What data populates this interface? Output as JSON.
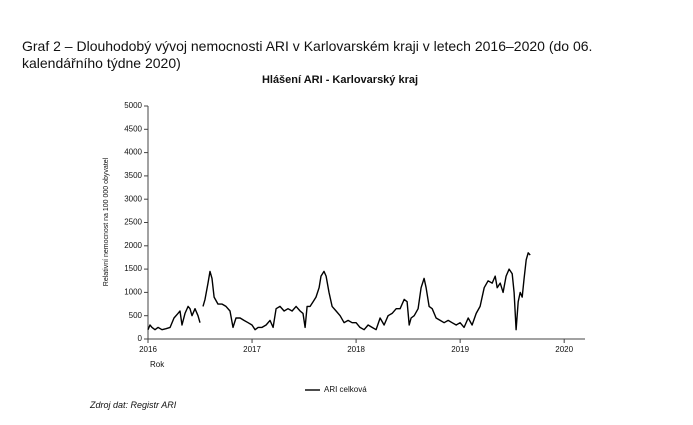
{
  "caption": "Graf 2 – Dlouhodobý vývoj nemocnosti ARI v Karlovarském kraji v letech 2016–2020 (do 06. kalendářního týdne 2020)",
  "source": "Zdroj dat: Registr ARI",
  "chart_data": {
    "type": "line",
    "title": "Hlášení ARI  -  Karlovarský kraj",
    "x_label": "Rok",
    "y_label": "Relativní nemocnost na 100 000 obyvatel",
    "x": [
      2016.0,
      2016.019,
      2016.038,
      2016.067,
      2016.096,
      2016.135,
      2016.173,
      2016.212,
      2016.25,
      2016.288,
      2016.308,
      2016.327,
      2016.356,
      2016.385,
      2016.404,
      2016.423,
      2016.452,
      2016.481,
      2016.5,
      2016.514,
      2016.529,
      2016.548,
      2016.577,
      2016.596,
      2016.615,
      2016.635,
      2016.673,
      2016.712,
      2016.75,
      2016.788,
      2016.817,
      2016.846,
      2016.885,
      2016.923,
      2016.962,
      2017.0,
      2017.029,
      2017.058,
      2017.096,
      2017.135,
      2017.173,
      2017.202,
      2017.231,
      2017.269,
      2017.308,
      2017.346,
      2017.385,
      2017.423,
      2017.462,
      2017.49,
      2017.51,
      2017.529,
      2017.558,
      2017.587,
      2017.615,
      2017.644,
      2017.663,
      2017.692,
      2017.712,
      2017.74,
      2017.769,
      2017.808,
      2017.846,
      2017.885,
      2017.923,
      2017.962,
      2018.0,
      2018.038,
      2018.077,
      2018.115,
      2018.154,
      2018.192,
      2018.231,
      2018.269,
      2018.308,
      2018.346,
      2018.385,
      2018.423,
      2018.462,
      2018.49,
      2018.51,
      2018.529,
      2018.558,
      2018.596,
      2018.625,
      2018.654,
      2018.673,
      2018.702,
      2018.731,
      2018.769,
      2018.808,
      2018.846,
      2018.885,
      2018.923,
      2018.962,
      2019.0,
      2019.038,
      2019.077,
      2019.115,
      2019.154,
      2019.192,
      2019.231,
      2019.269,
      2019.308,
      2019.337,
      2019.356,
      2019.385,
      2019.413,
      2019.442,
      2019.471,
      2019.5,
      2019.519,
      2019.538,
      2019.558,
      2019.577,
      2019.596,
      2019.615,
      2019.635,
      2019.654,
      2019.673
    ],
    "series": [
      {
        "name": "ARI celková",
        "color": "#000000",
        "values": [
          200,
          300,
          250,
          200,
          250,
          200,
          220,
          250,
          450,
          550,
          600,
          300,
          550,
          700,
          650,
          500,
          650,
          500,
          350,
          null,
          700,
          850,
          1200,
          1450,
          1300,
          900,
          750,
          750,
          700,
          600,
          250,
          450,
          450,
          400,
          350,
          300,
          200,
          250,
          250,
          300,
          400,
          250,
          650,
          700,
          600,
          650,
          600,
          700,
          600,
          550,
          250,
          700,
          700,
          800,
          900,
          1100,
          1350,
          1450,
          1350,
          1000,
          700,
          600,
          500,
          350,
          400,
          350,
          350,
          250,
          200,
          300,
          250,
          200,
          450,
          300,
          500,
          550,
          650,
          650,
          850,
          800,
          300,
          450,
          500,
          650,
          1100,
          1300,
          1100,
          700,
          650,
          450,
          400,
          350,
          400,
          350,
          300,
          350,
          250,
          450,
          300,
          550,
          700,
          1100,
          1250,
          1200,
          1350,
          1100,
          1200,
          1000,
          1350,
          1500,
          1400,
          1000,
          200,
          800,
          1000,
          900,
          1300,
          1700,
          1850,
          1800
        ]
      }
    ],
    "xlim": [
      2016,
      2020.2
    ],
    "xticks": [
      2016,
      2017,
      2018,
      2019,
      2020
    ],
    "ylim": [
      0,
      5000
    ],
    "yticks": [
      0,
      500,
      1000,
      1500,
      2000,
      2500,
      3000,
      3500,
      4000,
      4500,
      5000
    ],
    "grid": false
  }
}
